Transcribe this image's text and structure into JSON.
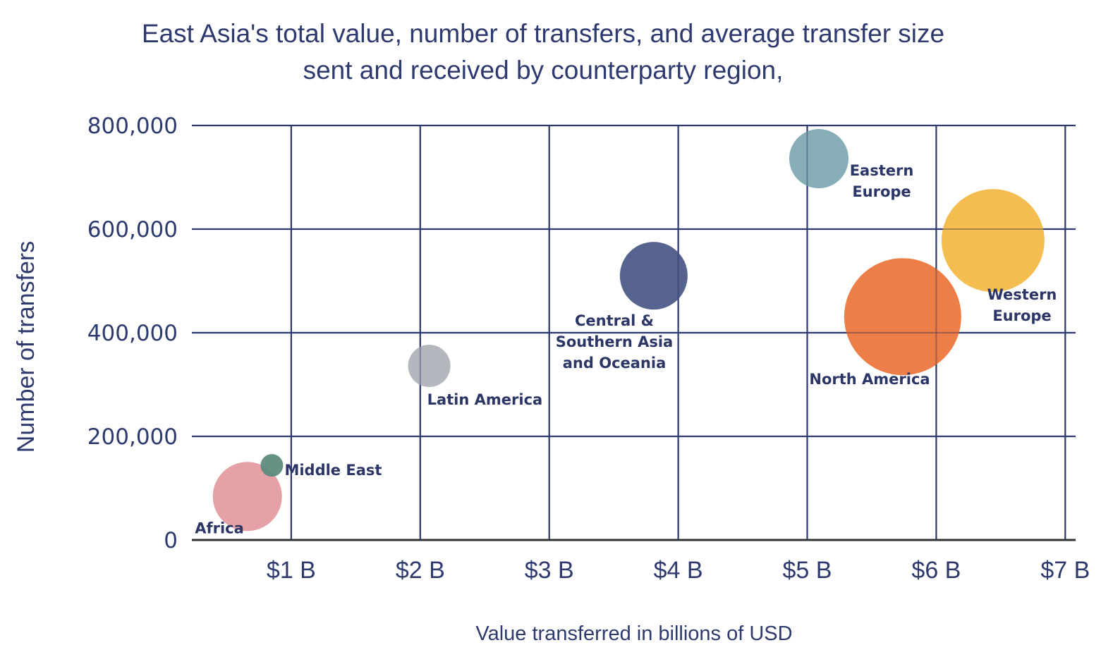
{
  "chart_data": {
    "type": "scatter",
    "subtype": "bubble",
    "title": "East Asia's total value, number of transfers, and average transfer size sent and received by counterparty region,",
    "title_lines": [
      "East Asia's total value, number of transfers, and average transfer size",
      "sent and received by counterparty region,"
    ],
    "xlabel": "Value transferred in billions of USD",
    "ylabel": "Number of transfers",
    "xlim": [
      0,
      7
    ],
    "ylim": [
      0,
      800000
    ],
    "x_ticks": [
      {
        "value": 1,
        "label": "$1 B"
      },
      {
        "value": 2,
        "label": "$2 B"
      },
      {
        "value": 3,
        "label": "$3 B"
      },
      {
        "value": 4,
        "label": "$4 B"
      },
      {
        "value": 5,
        "label": "$5 B"
      },
      {
        "value": 6,
        "label": "$6 B"
      },
      {
        "value": 7,
        "label": "$7 B"
      }
    ],
    "y_ticks": [
      {
        "value": 0,
        "label": "0"
      },
      {
        "value": 200000,
        "label": "200,000"
      },
      {
        "value": 400000,
        "label": "400,000"
      },
      {
        "value": 600000,
        "label": "600,000"
      },
      {
        "value": 800000,
        "label": "800,000"
      }
    ],
    "grid": true,
    "legend": "none",
    "size_encodes": "average transfer size (relative)",
    "points": [
      {
        "name": "Africa",
        "label_lines": [
          "Africa"
        ],
        "x": 0.66,
        "y": 84000,
        "size": 49,
        "color": "#e39a9e",
        "label_pos": "bottom-left"
      },
      {
        "name": "Middle East",
        "label_lines": [
          "Middle East"
        ],
        "x": 0.85,
        "y": 144000,
        "size": 16,
        "color": "#5a8a7c",
        "label_pos": "right"
      },
      {
        "name": "Latin America",
        "label_lines": [
          "Latin America"
        ],
        "x": 2.07,
        "y": 336000,
        "size": 30,
        "color": "#aeb3b9",
        "label_pos": "bottom-right"
      },
      {
        "name": "Central & Southern Asia and Oceania",
        "label_lines": [
          "Central &",
          "Southern Asia",
          "and Oceania"
        ],
        "x": 3.81,
        "y": 510000,
        "size": 48,
        "color": "#4a5787",
        "label_pos": "bottom-left"
      },
      {
        "name": "Eastern Europe",
        "label_lines": [
          "Eastern",
          "Europe"
        ],
        "x": 5.09,
        "y": 736000,
        "size": 42,
        "color": "#7ea8b2",
        "label_pos": "bottom-right"
      },
      {
        "name": "North America",
        "label_lines": [
          "North America"
        ],
        "x": 5.74,
        "y": 431000,
        "size": 83,
        "color": "#ed7439",
        "label_pos": "bottom-left"
      },
      {
        "name": "Western Europe",
        "label_lines": [
          "Western",
          "Europe"
        ],
        "x": 6.44,
        "y": 578000,
        "size": 73,
        "color": "#f3b843",
        "label_pos": "bottom-right"
      }
    ]
  },
  "colors": {
    "text": "#2e3a6e",
    "grid": "#2e3a6e",
    "axis": "#333333"
  }
}
